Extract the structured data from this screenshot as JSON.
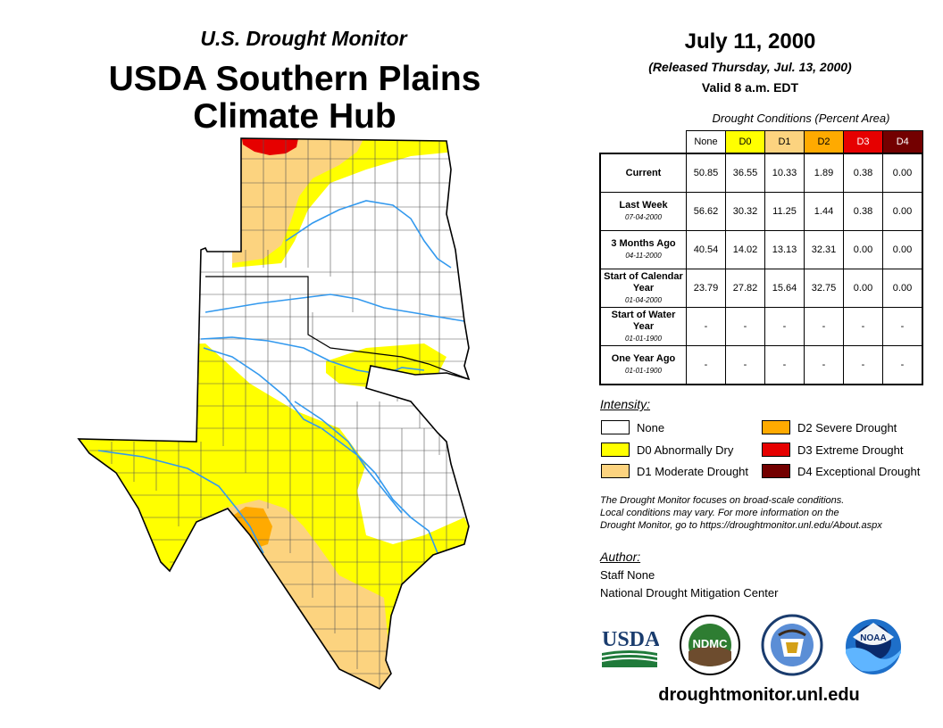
{
  "header": {
    "brand": "U.S. Drought Monitor",
    "title_line1": "USDA Southern Plains",
    "title_line2": "Climate Hub"
  },
  "date_block": {
    "date": "July 11, 2000",
    "released": "(Released Thursday, Jul. 13, 2000)",
    "valid": "Valid 8 a.m. EDT"
  },
  "conditions": {
    "title": "Drought Conditions (Percent Area)",
    "columns": [
      {
        "label": "None",
        "color": "#ffffff",
        "text_color": "#000000"
      },
      {
        "label": "D0",
        "color": "#ffff00",
        "text_color": "#000000"
      },
      {
        "label": "D1",
        "color": "#fcd37f",
        "text_color": "#000000"
      },
      {
        "label": "D2",
        "color": "#ffaa00",
        "text_color": "#000000"
      },
      {
        "label": "D3",
        "color": "#e60000",
        "text_color": "#ffffff"
      },
      {
        "label": "D4",
        "color": "#730000",
        "text_color": "#ffffff"
      }
    ],
    "rows": [
      {
        "label": "Current",
        "sub": "",
        "values": [
          "50.85",
          "36.55",
          "10.33",
          "1.89",
          "0.38",
          "0.00"
        ]
      },
      {
        "label": "Last Week",
        "sub": "07-04-2000",
        "values": [
          "56.62",
          "30.32",
          "11.25",
          "1.44",
          "0.38",
          "0.00"
        ]
      },
      {
        "label": "3 Months Ago",
        "sub": "04-11-2000",
        "values": [
          "40.54",
          "14.02",
          "13.13",
          "32.31",
          "0.00",
          "0.00"
        ]
      },
      {
        "label": "Start of Calendar Year",
        "sub": "01-04-2000",
        "values": [
          "23.79",
          "27.82",
          "15.64",
          "32.75",
          "0.00",
          "0.00"
        ]
      },
      {
        "label": "Start of Water Year",
        "sub": "01-01-1900",
        "values": [
          "-",
          "-",
          "-",
          "-",
          "-",
          "-"
        ]
      },
      {
        "label": "One Year Ago",
        "sub": "01-01-1900",
        "values": [
          "-",
          "-",
          "-",
          "-",
          "-",
          "-"
        ]
      }
    ]
  },
  "legend": {
    "title": "Intensity:",
    "items": [
      {
        "label": "None",
        "color": "#ffffff"
      },
      {
        "label": "D0 Abnormally Dry",
        "color": "#ffff00"
      },
      {
        "label": "D1 Moderate Drought",
        "color": "#fcd37f"
      },
      {
        "label": "D2 Severe Drought",
        "color": "#ffaa00"
      },
      {
        "label": "D3 Extreme Drought",
        "color": "#e60000"
      },
      {
        "label": "D4 Exceptional Drought",
        "color": "#730000"
      }
    ]
  },
  "note": {
    "line1": "The Drought Monitor focuses on broad-scale conditions.",
    "line2": "Local conditions may vary. For more information on the",
    "line3": "Drought Monitor, go to https://droughtmonitor.unl.edu/About.aspx"
  },
  "author": {
    "title": "Author:",
    "name": "Staff None",
    "org": "National Drought Mitigation Center"
  },
  "logos": {
    "usda": "USDA",
    "ndmc": "NDMC",
    "noaa": "NOAA"
  },
  "website": "droughtmonitor.unl.edu",
  "colors": {
    "river": "#3399ee",
    "outline": "#000000"
  }
}
